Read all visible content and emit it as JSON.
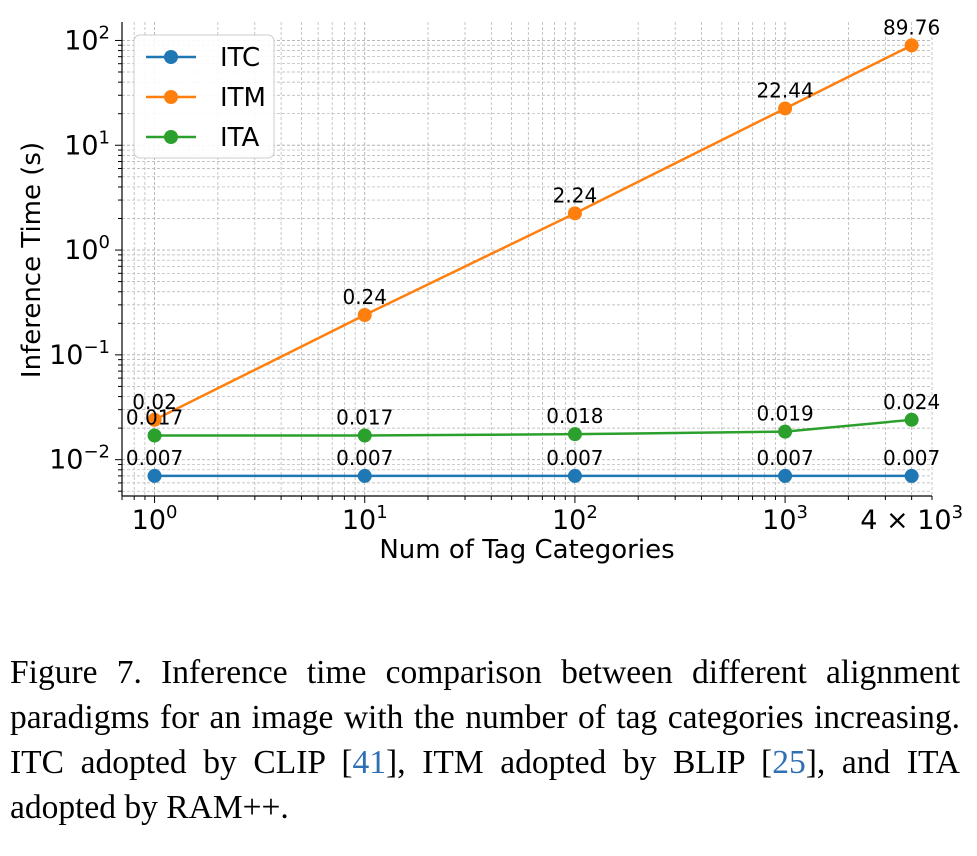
{
  "chart_data": {
    "type": "line",
    "xscale": "log",
    "yscale": "log",
    "x": [
      1,
      10,
      100,
      1000,
      4000
    ],
    "xlim": [
      0.7,
      5000
    ],
    "ylim": [
      0.0045,
      150
    ],
    "xlabel": "Num of Tag Categories",
    "ylabel": "Inference Time (s)",
    "xticks": [
      {
        "value": 1,
        "base": "10",
        "exp": "0"
      },
      {
        "value": 10,
        "base": "10",
        "exp": "1"
      },
      {
        "value": 100,
        "base": "10",
        "exp": "2"
      },
      {
        "value": 1000,
        "base": "10",
        "exp": "3"
      },
      {
        "value": 4000,
        "base": "4 × 10",
        "exp": "3"
      }
    ],
    "yticks": [
      {
        "value": 0.01,
        "base": "10",
        "exp": "−2"
      },
      {
        "value": 0.1,
        "base": "10",
        "exp": "−1"
      },
      {
        "value": 1,
        "base": "10",
        "exp": "0"
      },
      {
        "value": 10,
        "base": "10",
        "exp": "1"
      },
      {
        "value": 100,
        "base": "10",
        "exp": "2"
      }
    ],
    "grid": true,
    "legend_position": "upper-left",
    "series": [
      {
        "name": "ITC",
        "color": "#1f77b4",
        "values": [
          0.007,
          0.007,
          0.007,
          0.007,
          0.007
        ],
        "labels": [
          "0.007",
          "0.007",
          "0.007",
          "0.007",
          "0.007"
        ]
      },
      {
        "name": "ITM",
        "color": "#ff7f0e",
        "values": [
          0.024,
          0.24,
          2.24,
          22.44,
          89.76
        ],
        "labels": [
          "0.02",
          "0.24",
          "2.24",
          "22.44",
          "89.76"
        ]
      },
      {
        "name": "ITA",
        "color": "#2ca02c",
        "values": [
          0.017,
          0.017,
          0.0175,
          0.0185,
          0.024
        ],
        "labels": [
          "0.017",
          "0.017",
          "0.018",
          "0.019",
          "0.024"
        ]
      }
    ]
  },
  "caption": {
    "lead": "Figure 7. Inference time comparison between different alignment paradigms for an image with the number of tag categories increasing. ITC adopted by CLIP [",
    "ref1": "41",
    "mid1": "], ITM adopted by BLIP [",
    "ref2": "25",
    "tail": "], and ITA adopted by RAM++."
  }
}
